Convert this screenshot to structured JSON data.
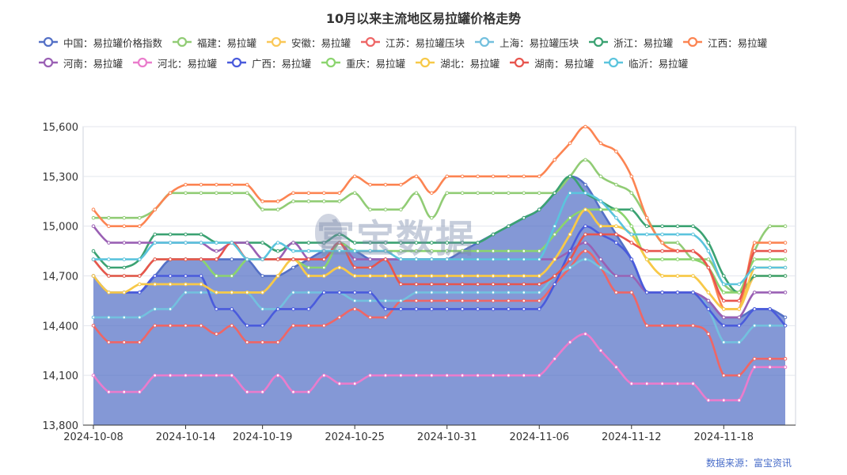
{
  "chart_data": {
    "type": "line",
    "title": "10月以来主流地区易拉罐价格走势",
    "source": "数据来源：富宝资讯",
    "watermark": "富宝数据",
    "ylim": [
      13800,
      15600
    ],
    "yticks": [
      13800,
      14100,
      14400,
      14700,
      15000,
      15300,
      15600
    ],
    "ytick_labels": [
      "13,800",
      "14,100",
      "14,400",
      "14,700",
      "15,000",
      "15,300",
      "15,600"
    ],
    "xtick_labels": [
      {
        "index": 0,
        "label": "2024-10-08"
      },
      {
        "index": 6,
        "label": "2024-10-14"
      },
      {
        "index": 11,
        "label": "2024-10-19"
      },
      {
        "index": 17,
        "label": "2024-10-25"
      },
      {
        "index": 23,
        "label": "2024-10-31"
      },
      {
        "index": 29,
        "label": "2024-11-06"
      },
      {
        "index": 35,
        "label": "2024-11-12"
      },
      {
        "index": 41,
        "label": "2024-11-18"
      }
    ],
    "x": [
      "2024-10-08",
      "2024-10-09",
      "2024-10-10",
      "2024-10-11",
      "2024-10-12",
      "2024-10-13",
      "2024-10-14",
      "2024-10-15",
      "2024-10-16",
      "2024-10-17",
      "2024-10-18",
      "2024-10-19",
      "2024-10-20",
      "2024-10-21",
      "2024-10-22",
      "2024-10-23",
      "2024-10-24",
      "2024-10-25",
      "2024-10-26",
      "2024-10-27",
      "2024-10-28",
      "2024-10-29",
      "2024-10-30",
      "2024-10-31",
      "2024-11-01",
      "2024-11-02",
      "2024-11-03",
      "2024-11-04",
      "2024-11-05",
      "2024-11-06",
      "2024-11-07",
      "2024-11-08",
      "2024-11-09",
      "2024-11-10",
      "2024-11-11",
      "2024-11-12",
      "2024-11-13",
      "2024-11-14",
      "2024-11-15",
      "2024-11-16",
      "2024-11-17",
      "2024-11-18",
      "2024-11-19",
      "2024-11-20",
      "2024-11-21",
      "2024-11-22"
    ],
    "series": [
      {
        "name": "中国：易拉罐价格指数",
        "color": "#5470c6",
        "area": true,
        "values": [
          14700,
          14600,
          14600,
          14600,
          14700,
          14800,
          14800,
          14800,
          14800,
          14800,
          14800,
          14700,
          14700,
          14750,
          14800,
          14850,
          14850,
          14850,
          14800,
          14800,
          14800,
          14800,
          14800,
          14800,
          14850,
          14900,
          14950,
          15000,
          15050,
          15100,
          15200,
          15300,
          15250,
          15100,
          14950,
          14800,
          14600,
          14600,
          14600,
          14600,
          14550,
          14450,
          14450,
          14500,
          14500,
          14450
        ]
      },
      {
        "name": "福建：易拉罐",
        "color": "#91cc75",
        "values": [
          15050,
          15050,
          15050,
          15050,
          15100,
          15200,
          15200,
          15200,
          15200,
          15200,
          15200,
          15100,
          15100,
          15150,
          15150,
          15150,
          15150,
          15200,
          15100,
          15100,
          15100,
          15200,
          15050,
          15200,
          15200,
          15200,
          15200,
          15200,
          15200,
          15200,
          15200,
          15300,
          15400,
          15300,
          15250,
          15200,
          15050,
          14900,
          14900,
          14800,
          14800,
          14650,
          14600,
          14850,
          15000,
          15000
        ]
      },
      {
        "name": "安徽：易拉罐",
        "color": "#fac858",
        "values": [
          14700,
          14600,
          14600,
          14650,
          14650,
          14650,
          14650,
          14650,
          14600,
          14600,
          14600,
          14600,
          14700,
          14800,
          14700,
          14700,
          14750,
          14700,
          14700,
          14700,
          14700,
          14700,
          14700,
          14700,
          14700,
          14700,
          14700,
          14700,
          14700,
          14700,
          14800,
          14950,
          15100,
          15000,
          15000,
          14950,
          14800,
          14700,
          14700,
          14700,
          14600,
          14500,
          14500,
          14700,
          14700,
          14700
        ]
      },
      {
        "name": "江苏：易拉罐压块",
        "color": "#ee6666",
        "values": [
          14400,
          14300,
          14300,
          14300,
          14400,
          14400,
          14400,
          14400,
          14350,
          14400,
          14300,
          14300,
          14300,
          14400,
          14400,
          14400,
          14450,
          14500,
          14450,
          14450,
          14550,
          14550,
          14550,
          14550,
          14550,
          14550,
          14550,
          14550,
          14550,
          14550,
          14650,
          14750,
          14850,
          14750,
          14600,
          14600,
          14400,
          14400,
          14400,
          14400,
          14350,
          14100,
          14100,
          14200,
          14200,
          14200
        ]
      },
      {
        "name": "上海：易拉罐压块",
        "color": "#73c0de",
        "values": [
          14450,
          14450,
          14450,
          14450,
          14500,
          14500,
          14600,
          14600,
          14600,
          14600,
          14600,
          14500,
          14500,
          14600,
          14600,
          14600,
          14600,
          14550,
          14550,
          14550,
          14550,
          14600,
          14600,
          14600,
          14600,
          14600,
          14600,
          14600,
          14600,
          14600,
          14700,
          14750,
          14800,
          14750,
          14700,
          14700,
          14600,
          14600,
          14600,
          14600,
          14500,
          14300,
          14300,
          14400,
          14400,
          14400
        ]
      },
      {
        "name": "浙江：易拉罐",
        "color": "#3ba272",
        "values": [
          14850,
          14750,
          14750,
          14800,
          14950,
          14950,
          14950,
          14950,
          14900,
          14900,
          14900,
          14900,
          14850,
          14900,
          14900,
          14900,
          14950,
          14900,
          14900,
          14900,
          14900,
          14900,
          14900,
          14900,
          14900,
          14900,
          14950,
          15000,
          15050,
          15100,
          15200,
          15300,
          15200,
          15150,
          15100,
          15100,
          15000,
          15000,
          15000,
          15000,
          14900,
          14700,
          14600,
          14700,
          14700,
          14700
        ]
      },
      {
        "name": "江西：易拉罐",
        "color": "#fc8452",
        "values": [
          15100,
          15000,
          15000,
          15000,
          15100,
          15200,
          15250,
          15250,
          15250,
          15250,
          15250,
          15150,
          15150,
          15200,
          15200,
          15200,
          15200,
          15300,
          15250,
          15250,
          15250,
          15300,
          15200,
          15300,
          15300,
          15300,
          15300,
          15300,
          15300,
          15300,
          15400,
          15500,
          15600,
          15500,
          15450,
          15300,
          15050,
          14900,
          14850,
          14850,
          14750,
          14500,
          14500,
          14900,
          14900,
          14900
        ]
      },
      {
        "name": "河南：易拉罐",
        "color": "#9a60b4",
        "values": [
          15000,
          14900,
          14900,
          14900,
          14900,
          14900,
          14900,
          14900,
          14850,
          14900,
          14900,
          14800,
          14800,
          14900,
          14800,
          14800,
          14900,
          14800,
          14800,
          14800,
          14800,
          14800,
          14800,
          14800,
          14800,
          14800,
          14800,
          14800,
          14800,
          14800,
          14800,
          14850,
          14900,
          14800,
          14700,
          14700,
          14600,
          14600,
          14600,
          14600,
          14550,
          14450,
          14450,
          14600,
          14600,
          14600
        ]
      },
      {
        "name": "河北：易拉罐",
        "color": "#ea7ccc",
        "values": [
          14100,
          14000,
          14000,
          14000,
          14100,
          14100,
          14100,
          14100,
          14100,
          14100,
          14000,
          14000,
          14100,
          14000,
          14000,
          14100,
          14050,
          14050,
          14100,
          14100,
          14100,
          14100,
          14100,
          14100,
          14100,
          14100,
          14100,
          14100,
          14100,
          14100,
          14200,
          14300,
          14350,
          14250,
          14150,
          14050,
          14050,
          14050,
          14050,
          14050,
          13950,
          13950,
          13950,
          14150,
          14150,
          14150
        ]
      },
      {
        "name": "广西：易拉罐",
        "color": "#4a5bdc",
        "values": [
          14700,
          14600,
          14600,
          14600,
          14700,
          14700,
          14700,
          14700,
          14500,
          14500,
          14400,
          14400,
          14500,
          14500,
          14500,
          14600,
          14600,
          14600,
          14600,
          14500,
          14500,
          14500,
          14500,
          14500,
          14500,
          14500,
          14500,
          14500,
          14500,
          14500,
          14650,
          14850,
          15000,
          14950,
          14900,
          14800,
          14600,
          14600,
          14600,
          14600,
          14500,
          14400,
          14400,
          14500,
          14500,
          14400
        ]
      },
      {
        "name": "重庆：易拉罐",
        "color": "#8bd46e",
        "values": [
          14800,
          14700,
          14700,
          14700,
          14800,
          14800,
          14800,
          14800,
          14700,
          14700,
          14800,
          14800,
          14800,
          14800,
          14750,
          14750,
          14900,
          14850,
          14850,
          14850,
          14850,
          14850,
          14850,
          14850,
          14850,
          14850,
          14850,
          14850,
          14850,
          14850,
          14950,
          15050,
          15100,
          15100,
          15100,
          15000,
          14800,
          14800,
          14800,
          14800,
          14750,
          14600,
          14600,
          14800,
          14800,
          14800
        ]
      },
      {
        "name": "湖北：易拉罐",
        "color": "#f7c948",
        "values": [
          14700,
          14600,
          14600,
          14650,
          14650,
          14650,
          14650,
          14650,
          14600,
          14600,
          14600,
          14600,
          14700,
          14800,
          14700,
          14700,
          14750,
          14700,
          14700,
          14700,
          14700,
          14700,
          14700,
          14700,
          14700,
          14700,
          14700,
          14700,
          14700,
          14700,
          14800,
          14950,
          15100,
          15000,
          15000,
          14950,
          14800,
          14700,
          14700,
          14700,
          14600,
          14500,
          14500,
          14750,
          14750,
          14750
        ]
      },
      {
        "name": "湖南：易拉罐",
        "color": "#e8554e",
        "values": [
          14800,
          14700,
          14700,
          14700,
          14800,
          14800,
          14800,
          14800,
          14800,
          14900,
          14800,
          14800,
          14800,
          14800,
          14800,
          14800,
          14900,
          14750,
          14750,
          14800,
          14650,
          14650,
          14650,
          14650,
          14650,
          14650,
          14650,
          14650,
          14650,
          14650,
          14700,
          14800,
          14950,
          14950,
          14950,
          14900,
          14850,
          14850,
          14850,
          14850,
          14750,
          14550,
          14550,
          14850,
          14850,
          14850
        ]
      },
      {
        "name": "临沂：易拉罐",
        "color": "#5bc4dd",
        "values": [
          14800,
          14800,
          14800,
          14800,
          14900,
          14900,
          14900,
          14900,
          14900,
          14900,
          14800,
          14800,
          14900,
          14850,
          14850,
          14850,
          14850,
          14850,
          14850,
          14850,
          14800,
          14800,
          14800,
          14800,
          14800,
          14800,
          14800,
          14800,
          14800,
          14800,
          15000,
          15200,
          15200,
          15150,
          15050,
          14950,
          14950,
          14950,
          14950,
          14950,
          14850,
          14650,
          14650,
          14750,
          14750,
          14750
        ]
      }
    ]
  }
}
